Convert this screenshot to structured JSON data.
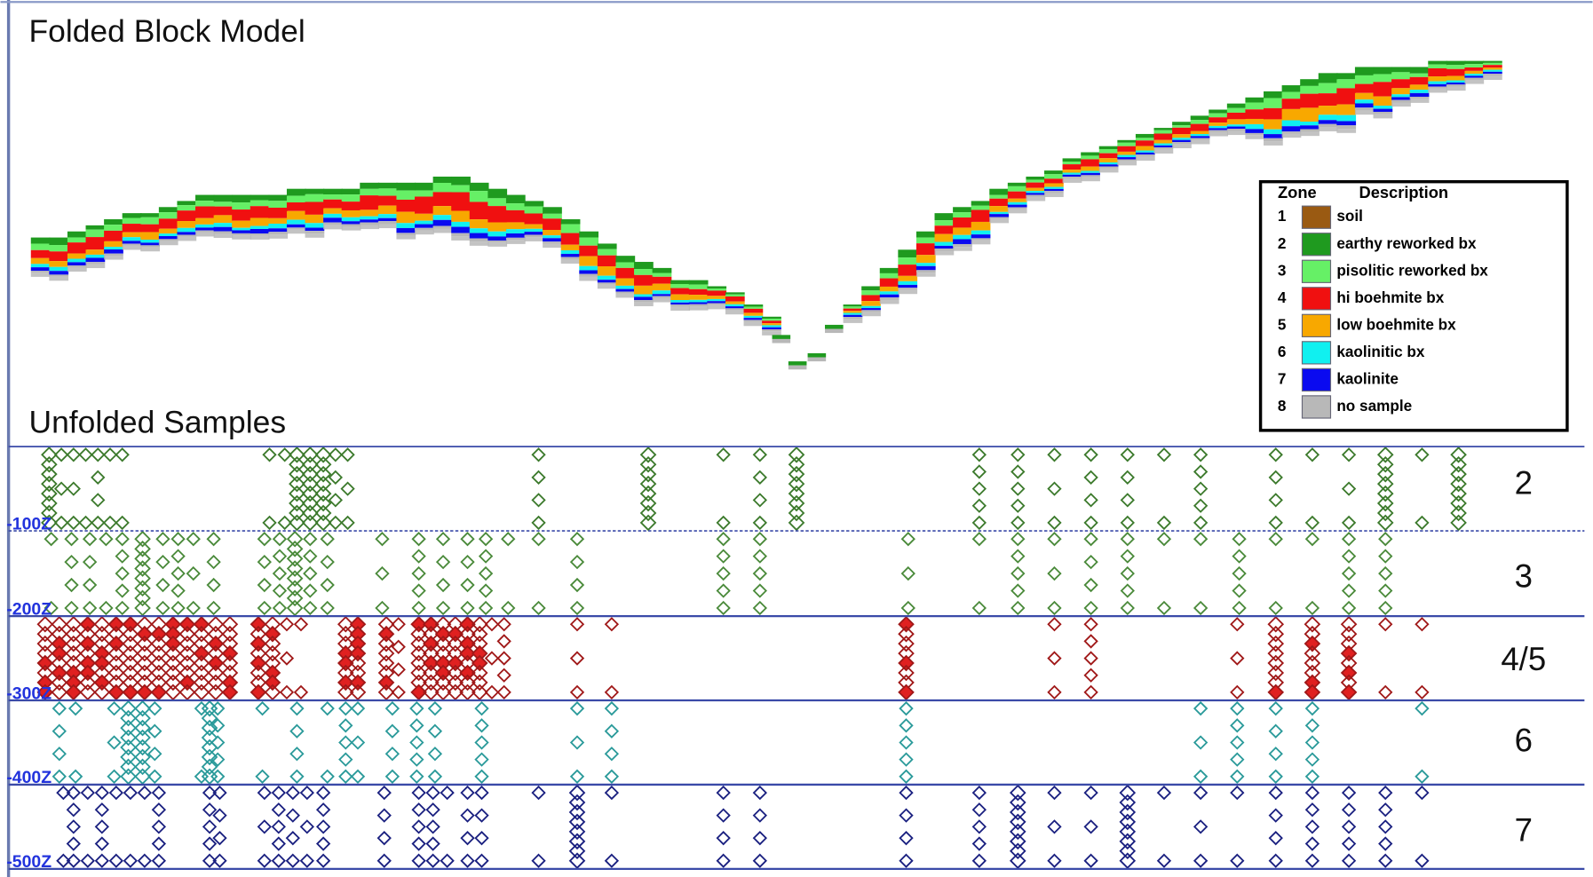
{
  "title": "Folded Block Model",
  "subtitle": "Unfolded Samples",
  "legend": {
    "header": [
      "Zone",
      "Description"
    ],
    "rows": [
      {
        "zone": "1",
        "description": "soil",
        "color": "#9a5a12"
      },
      {
        "zone": "2",
        "description": "earthy reworked bx",
        "color": "#1f9a1f"
      },
      {
        "zone": "3",
        "description": "pisolitic reworked bx",
        "color": "#66f066"
      },
      {
        "zone": "4",
        "description": "hi boehmite bx",
        "color": "#f01010"
      },
      {
        "zone": "5",
        "description": "low boehmite bx",
        "color": "#f8a800"
      },
      {
        "zone": "6",
        "description": "kaolinitic bx",
        "color": "#10f0f0"
      },
      {
        "zone": "7",
        "description": "kaolinite",
        "color": "#0a0af0"
      },
      {
        "zone": "8",
        "description": "no sample",
        "color": "#b8b8b8"
      }
    ]
  },
  "depth_labels": [
    "-100Z",
    "-200Z",
    "-300Z",
    "-400Z",
    "-500Z"
  ],
  "zone_labels": [
    "2",
    "3",
    "4/5",
    "6",
    "7"
  ]
}
